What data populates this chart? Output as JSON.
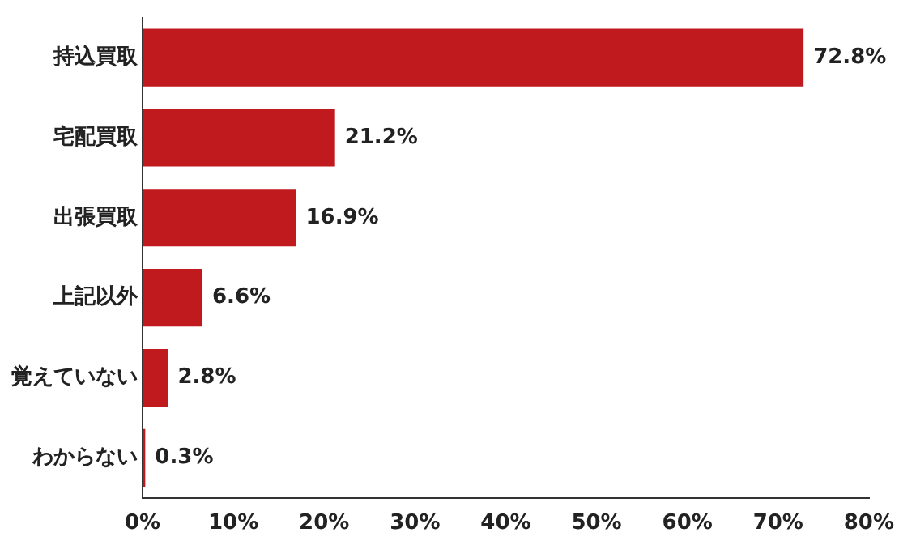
{
  "chart_data": {
    "type": "bar",
    "orientation": "horizontal",
    "categories": [
      "持込買取",
      "宅配買取",
      "出張買取",
      "上記以外",
      "覚えていない",
      "わからない"
    ],
    "values": [
      72.8,
      21.2,
      16.9,
      6.6,
      2.8,
      0.3
    ],
    "value_labels": [
      "72.8%",
      "21.2%",
      "16.9%",
      "6.6%",
      "2.8%",
      "0.3%"
    ],
    "color": "#c0191e",
    "xlim": [
      0,
      80
    ],
    "xticks": [
      {
        "value": 0,
        "label": "0%"
      },
      {
        "value": 10,
        "label": "10%"
      },
      {
        "value": 20,
        "label": "20%"
      },
      {
        "value": 30,
        "label": "30%"
      },
      {
        "value": 40,
        "label": "40%"
      },
      {
        "value": 50,
        "label": "50%"
      },
      {
        "value": 60,
        "label": "60%"
      },
      {
        "value": 70,
        "label": "70%"
      },
      {
        "value": 80,
        "label": "80%"
      }
    ],
    "grid": false,
    "legend": false
  }
}
